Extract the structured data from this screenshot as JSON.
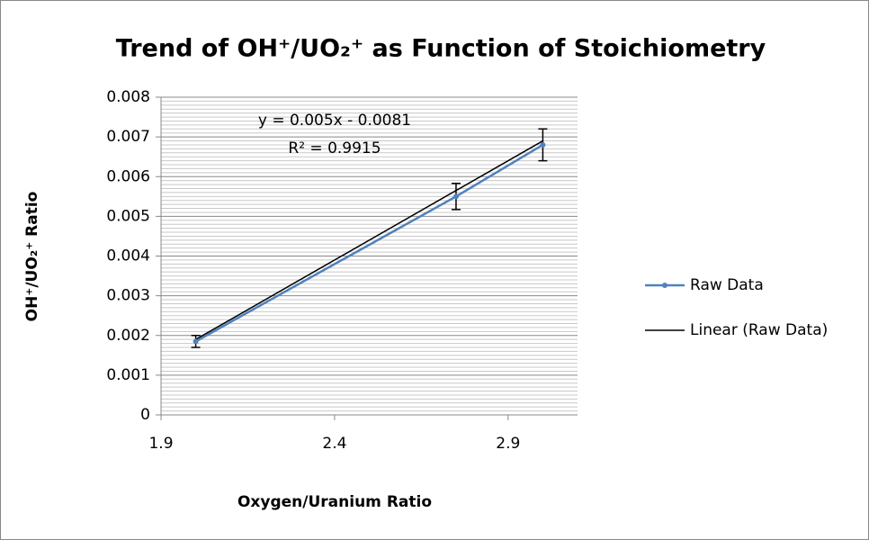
{
  "chart_data": {
    "type": "scatter_line",
    "title": "Trend of OH⁺/UO₂⁺ as Function of Stoichiometry",
    "x_label": "Oxygen/Uranium Ratio",
    "y_label": "OH⁺/UO₂⁺ Ratio",
    "x": [
      2.0,
      2.75,
      3.0
    ],
    "series": [
      {
        "name": "Raw Data",
        "color": "#4f81bd",
        "values": [
          0.00185,
          0.0055,
          0.0068
        ],
        "errors": [
          0.00015,
          0.00033,
          0.0004
        ]
      }
    ],
    "trendline": {
      "name": "Linear (Raw Data)",
      "color": "#000000",
      "slope": 0.005,
      "intercept": -0.0081,
      "equation": "y = 0.005x - 0.0081",
      "r2_label": "R² = 0.9915"
    },
    "xlim": [
      1.9,
      3.1
    ],
    "xticks": [
      1.9,
      2.4,
      2.9
    ],
    "ylim": [
      0,
      0.008
    ],
    "yticks": [
      0,
      0.001,
      0.002,
      0.003,
      0.004,
      0.005,
      0.006,
      0.007,
      0.008
    ],
    "grid": true,
    "minor_grid": true,
    "legend": "right"
  }
}
